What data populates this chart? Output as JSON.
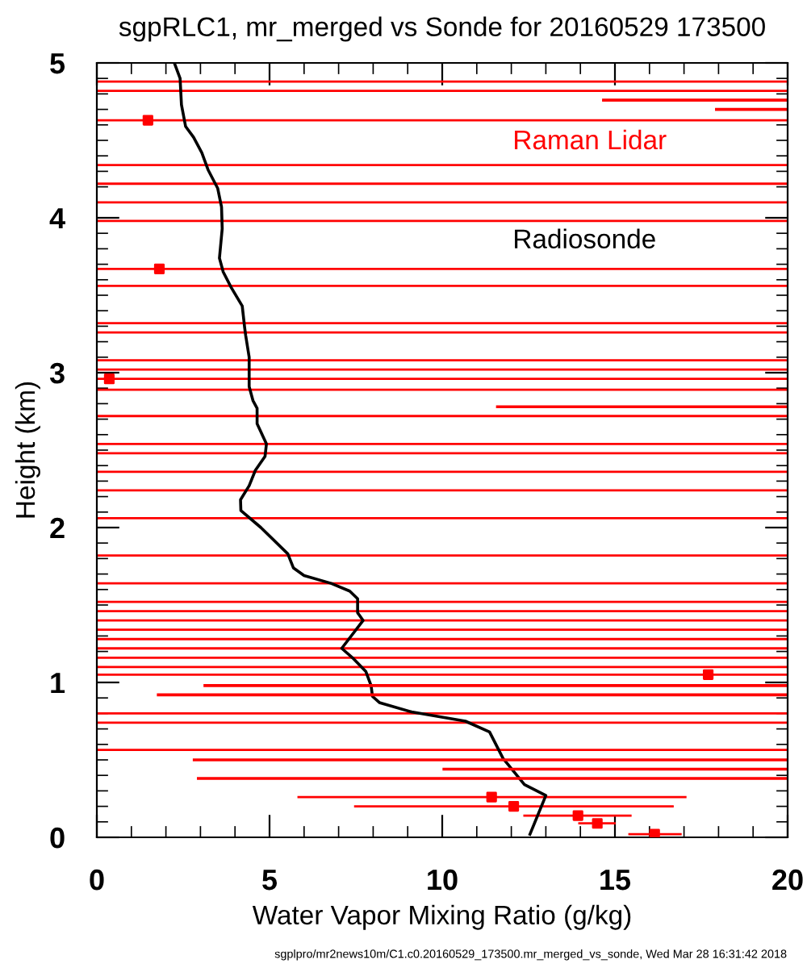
{
  "chart_data": {
    "type": "scatter",
    "title": "sgpRLC1, mr_merged vs Sonde for 20160529 173500",
    "xlabel": "Water Vapor Mixing Ratio (g/kg)",
    "ylabel": "Height (km)",
    "annotations": [
      "sgplpro/mr2news10m/C1.c0.20160529_173500.mr_merged_vs_sonde, Wed Mar 28 16:31:42 2018"
    ],
    "xlim": [
      0,
      20
    ],
    "xticks": [
      0,
      5,
      10,
      15,
      20
    ],
    "ylim": [
      0,
      5
    ],
    "yticks": [
      0,
      1,
      2,
      3,
      4,
      5
    ],
    "grid": false,
    "legend": "top right",
    "series": [
      {
        "name": "Raman Lidar",
        "color": "#ff0000",
        "marker": "square",
        "x": [
          1.48,
          1.81,
          0.36,
          17.7,
          11.43,
          12.07,
          13.93,
          14.49,
          16.15
        ],
        "values": [
          4.63,
          3.67,
          2.96,
          1.05,
          0.26,
          0.2,
          0.14,
          0.09,
          0.02
        ],
        "xerrors": [
          null,
          null,
          null,
          null,
          [
            5.84,
            17.04
          ],
          [
            7.48,
            16.67
          ],
          [
            12.38,
            15.45
          ],
          [
            13.97,
            14.99
          ],
          [
            15.42,
            16.9
          ]
        ]
      },
      {
        "name": "Radiosonde",
        "type": "line",
        "color": "#000000",
        "marker": "none",
        "line_style": "solid",
        "x": [
          2.26,
          2.41,
          2.45,
          2.57,
          2.8,
          3.04,
          3.22,
          3.5,
          3.61,
          3.63,
          3.55,
          3.66,
          3.89,
          4.21,
          4.28,
          4.31,
          4.41,
          4.41,
          4.52,
          4.64,
          4.64,
          4.91,
          4.87,
          4.59,
          4.41,
          4.16,
          4.17,
          4.75,
          5.53,
          5.69,
          6.0,
          6.78,
          7.32,
          7.55,
          7.55,
          7.71,
          7.09,
          7.4,
          7.79,
          7.94,
          7.98,
          8.18,
          9.11,
          10.67,
          11.37,
          11.76,
          12.38,
          13.0,
          12.54
        ],
        "values": [
          4.99,
          4.9,
          4.73,
          4.59,
          4.52,
          4.42,
          4.31,
          4.19,
          4.07,
          3.93,
          3.74,
          3.65,
          3.55,
          3.43,
          3.29,
          3.24,
          3.1,
          2.91,
          2.82,
          2.77,
          2.67,
          2.54,
          2.46,
          2.37,
          2.27,
          2.18,
          2.11,
          2.0,
          1.83,
          1.74,
          1.69,
          1.64,
          1.59,
          1.54,
          1.45,
          1.4,
          1.22,
          1.16,
          1.07,
          0.98,
          0.91,
          0.87,
          0.81,
          0.75,
          0.68,
          0.51,
          0.34,
          0.27,
          0.02
        ]
      },
      {
        "type": "line",
        "color": "#ff0000",
        "marker": "none",
        "line_style": "solid",
        "x": [
          14.67,
          20,
          null,
          17.94,
          20,
          null,
          11.6,
          20,
          null,
          3.13,
          20,
          null,
          1.78,
          20,
          null,
          2.82,
          20,
          null,
          10.05,
          20,
          null,
          2.94,
          20
        ],
        "values": [
          4.76,
          4.76,
          null,
          4.7,
          4.7,
          null,
          2.78,
          2.78,
          null,
          0.98,
          0.98,
          null,
          0.92,
          0.92,
          null,
          0.5,
          0.5,
          null,
          0.44,
          0.44,
          null,
          0.38,
          0.38
        ]
      }
    ],
    "ref_lines": [
      {
        "axis": "y",
        "value": 4.88,
        "color": "#ff0000"
      },
      {
        "axis": "y",
        "value": 4.82,
        "color": "#ff0000"
      },
      {
        "axis": "y",
        "value": 4.63,
        "color": "#ff0000"
      },
      {
        "axis": "y",
        "value": 4.34,
        "color": "#ff0000"
      },
      {
        "axis": "y",
        "value": 4.22,
        "color": "#ff0000"
      },
      {
        "axis": "y",
        "value": 4.1,
        "color": "#ff0000"
      },
      {
        "axis": "y",
        "value": 3.98,
        "color": "#ff0000"
      },
      {
        "axis": "y",
        "value": 3.67,
        "color": "#ff0000"
      },
      {
        "axis": "y",
        "value": 3.56,
        "color": "#ff0000"
      },
      {
        "axis": "y",
        "value": 3.32,
        "color": "#ff0000"
      },
      {
        "axis": "y",
        "value": 3.26,
        "color": "#ff0000"
      },
      {
        "axis": "y",
        "value": 3.08,
        "color": "#ff0000"
      },
      {
        "axis": "y",
        "value": 3.02,
        "color": "#ff0000"
      },
      {
        "axis": "y",
        "value": 2.96,
        "color": "#ff0000"
      },
      {
        "axis": "y",
        "value": 2.89,
        "color": "#ff0000"
      },
      {
        "axis": "y",
        "value": 2.72,
        "color": "#ff0000"
      },
      {
        "axis": "y",
        "value": 2.54,
        "color": "#ff0000"
      },
      {
        "axis": "y",
        "value": 2.48,
        "color": "#ff0000"
      },
      {
        "axis": "y",
        "value": 2.36,
        "color": "#ff0000"
      },
      {
        "axis": "y",
        "value": 2.24,
        "color": "#ff0000"
      },
      {
        "axis": "y",
        "value": 2.06,
        "color": "#ff0000"
      },
      {
        "axis": "y",
        "value": 1.82,
        "color": "#ff0000"
      },
      {
        "axis": "y",
        "value": 1.64,
        "color": "#ff0000"
      },
      {
        "axis": "y",
        "value": 1.52,
        "color": "#ff0000"
      },
      {
        "axis": "y",
        "value": 1.46,
        "color": "#ff0000"
      },
      {
        "axis": "y",
        "value": 1.4,
        "color": "#ff0000"
      },
      {
        "axis": "y",
        "value": 1.34,
        "color": "#ff0000"
      },
      {
        "axis": "y",
        "value": 1.28,
        "color": "#ff0000"
      },
      {
        "axis": "y",
        "value": 1.22,
        "color": "#ff0000"
      },
      {
        "axis": "y",
        "value": 1.16,
        "color": "#ff0000"
      },
      {
        "axis": "y",
        "value": 1.1,
        "color": "#ff0000"
      },
      {
        "axis": "y",
        "value": 1.05,
        "color": "#ff0000"
      },
      {
        "axis": "y",
        "value": 0.8,
        "color": "#ff0000"
      },
      {
        "axis": "y",
        "value": 0.74,
        "color": "#ff0000"
      },
      {
        "axis": "y",
        "value": 0.565,
        "color": "#ff0000"
      }
    ]
  }
}
